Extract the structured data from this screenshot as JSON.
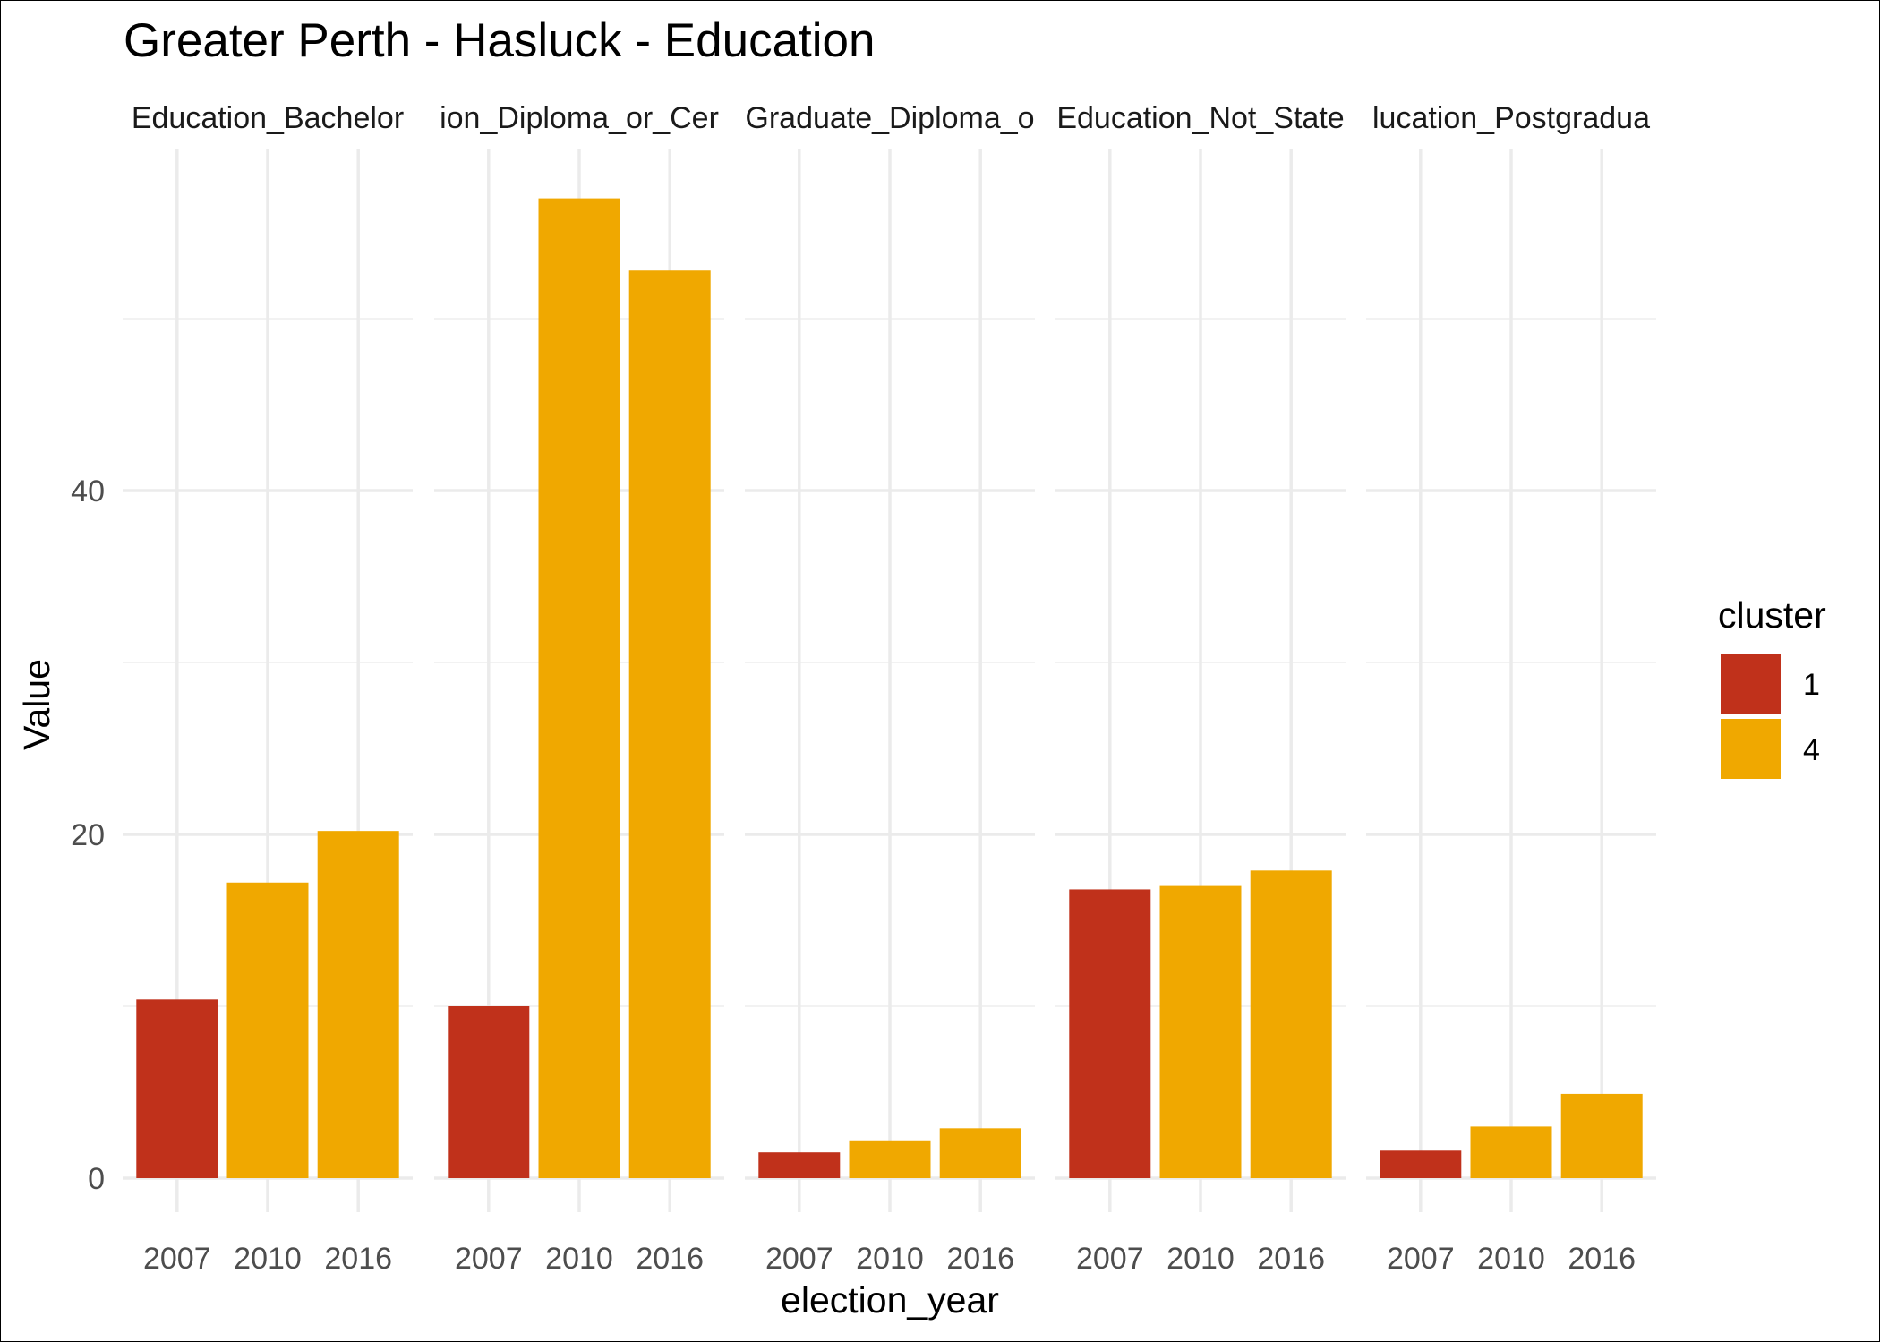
{
  "chart_data": {
    "type": "bar",
    "title": "Greater Perth - Hasluck - Education",
    "xlabel": "election_year",
    "ylabel": "Value",
    "ylim": [
      0,
      57
    ],
    "yticks": [
      0,
      20,
      40
    ],
    "grid": true,
    "legend": {
      "title": "cluster",
      "placement": "right",
      "entries": [
        {
          "label": "1",
          "color": "#C0311B"
        },
        {
          "label": "4",
          "color": "#F0A800"
        }
      ]
    },
    "categories": [
      "2007",
      "2010",
      "2016"
    ],
    "panels": [
      {
        "label": "Education_Bachelor",
        "values": [
          10.4,
          17.2,
          20.2
        ],
        "clusters": [
          "1",
          "4",
          "4"
        ]
      },
      {
        "label": "ion_Diploma_or_Cer",
        "values": [
          10.0,
          57.0,
          52.8
        ],
        "clusters": [
          "1",
          "4",
          "4"
        ]
      },
      {
        "label": "Graduate_Diploma_o",
        "values": [
          1.5,
          2.2,
          2.9
        ],
        "clusters": [
          "1",
          "4",
          "4"
        ]
      },
      {
        "label": "Education_Not_State",
        "values": [
          16.8,
          17.0,
          17.9
        ],
        "clusters": [
          "1",
          "4",
          "4"
        ]
      },
      {
        "label": "lucation_Postgradua",
        "values": [
          1.6,
          3.0,
          4.9
        ],
        "clusters": [
          "1",
          "4",
          "4"
        ]
      }
    ]
  }
}
